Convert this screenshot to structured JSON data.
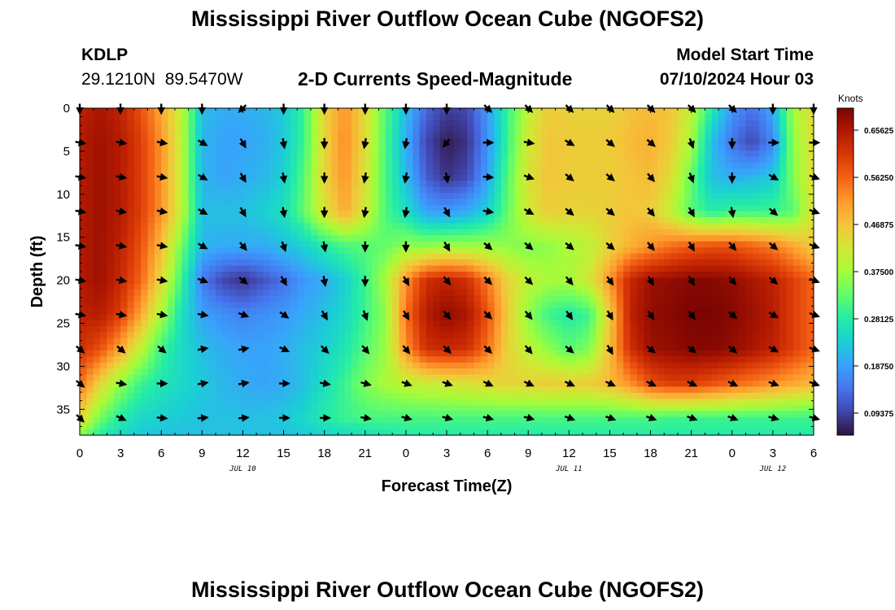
{
  "page_title": "Mississippi River Outflow Ocean Cube (NGOFS2)",
  "station": {
    "id": "KDLP",
    "coords": "29.1210N  89.5470W"
  },
  "model_start": {
    "label": "Model Start Time",
    "value": "07/10/2024 Hour 03"
  },
  "bottom_title": "Mississippi River Outflow Ocean Cube (NGOFS2)",
  "chart_data": {
    "type": "heatmap",
    "title": "2-D Currents Speed-Magnitude",
    "xlabel": "Forecast Time(Z)",
    "ylabel": "Depth (ft)",
    "x_range": [
      0,
      54
    ],
    "y_range": [
      0,
      38
    ],
    "y_axis_inverted": true,
    "x_tick_values": [
      0,
      3,
      6,
      9,
      12,
      15,
      18,
      21,
      24,
      27,
      30,
      33,
      36,
      39,
      42,
      45,
      48,
      51,
      54
    ],
    "x_tick_labels": [
      "0",
      "3",
      "6",
      "9",
      "12",
      "15",
      "18",
      "21",
      "0",
      "3",
      "6",
      "9",
      "12",
      "15",
      "18",
      "21",
      "0",
      "3",
      "6"
    ],
    "y_tick_values": [
      0,
      5,
      10,
      15,
      20,
      25,
      30,
      35
    ],
    "y_tick_labels": [
      "0",
      "5",
      "10",
      "15",
      "20",
      "25",
      "30",
      "35"
    ],
    "day_labels": [
      {
        "x": 12,
        "text": "JUL 10"
      },
      {
        "x": 36,
        "text": "JUL 11"
      },
      {
        "x": 51,
        "text": "JUL 12"
      }
    ],
    "colorbar": {
      "unit": "Knots",
      "range": [
        0.05,
        0.7
      ],
      "tick_values": [
        0.09375,
        0.1875,
        0.28125,
        0.375,
        0.46875,
        0.5625,
        0.65625
      ],
      "tick_labels": [
        "0.09375",
        "0.18750",
        "0.28125",
        "0.37500",
        "0.46875",
        "0.56250",
        "0.65625"
      ],
      "colormap": [
        "#30123b",
        "#4145ab",
        "#4675ed",
        "#39a2fc",
        "#1bcfd4",
        "#24eca6",
        "#61fc6c",
        "#a4fc3b",
        "#d1e834",
        "#f3c63a",
        "#fe9b2d",
        "#f36315",
        "#d93806",
        "#b11901",
        "#7a0402"
      ]
    },
    "speed_field": {
      "x": [
        0,
        1.5,
        3,
        4.5,
        6,
        7.5,
        9,
        10.5,
        12,
        13.5,
        15,
        16.5,
        18,
        19.5,
        21,
        22.5,
        24,
        25.5,
        27,
        28.5,
        30,
        31.5,
        33,
        34.5,
        36,
        37.5,
        39,
        40.5,
        42,
        43.5,
        45,
        46.5,
        48,
        49.5,
        51,
        52.5,
        54
      ],
      "depth": [
        0,
        4,
        8,
        12,
        16,
        20,
        24,
        28,
        32,
        36,
        38
      ],
      "values": [
        [
          0.64,
          0.66,
          0.64,
          0.58,
          0.5,
          0.4,
          0.22,
          0.2,
          0.2,
          0.21,
          0.23,
          0.3,
          0.45,
          0.52,
          0.44,
          0.32,
          0.22,
          0.13,
          0.09,
          0.1,
          0.18,
          0.3,
          0.4,
          0.46,
          0.45,
          0.45,
          0.45,
          0.47,
          0.48,
          0.47,
          0.4,
          0.28,
          0.18,
          0.14,
          0.2,
          0.38,
          0.44
        ],
        [
          0.65,
          0.67,
          0.65,
          0.6,
          0.52,
          0.4,
          0.21,
          0.19,
          0.19,
          0.2,
          0.23,
          0.3,
          0.45,
          0.53,
          0.44,
          0.31,
          0.2,
          0.1,
          0.06,
          0.08,
          0.17,
          0.3,
          0.42,
          0.47,
          0.46,
          0.46,
          0.46,
          0.48,
          0.49,
          0.46,
          0.38,
          0.22,
          0.14,
          0.1,
          0.16,
          0.36,
          0.44
        ],
        [
          0.65,
          0.67,
          0.65,
          0.6,
          0.52,
          0.4,
          0.21,
          0.19,
          0.2,
          0.21,
          0.24,
          0.32,
          0.45,
          0.52,
          0.43,
          0.31,
          0.22,
          0.12,
          0.08,
          0.1,
          0.19,
          0.32,
          0.43,
          0.47,
          0.46,
          0.46,
          0.46,
          0.47,
          0.48,
          0.44,
          0.33,
          0.22,
          0.2,
          0.21,
          0.23,
          0.35,
          0.44
        ],
        [
          0.65,
          0.67,
          0.65,
          0.6,
          0.52,
          0.4,
          0.22,
          0.22,
          0.22,
          0.24,
          0.26,
          0.33,
          0.43,
          0.5,
          0.42,
          0.31,
          0.26,
          0.19,
          0.18,
          0.2,
          0.24,
          0.33,
          0.42,
          0.46,
          0.45,
          0.45,
          0.46,
          0.47,
          0.46,
          0.4,
          0.32,
          0.28,
          0.3,
          0.3,
          0.3,
          0.32,
          0.44
        ],
        [
          0.65,
          0.67,
          0.64,
          0.58,
          0.48,
          0.34,
          0.21,
          0.2,
          0.2,
          0.2,
          0.22,
          0.24,
          0.28,
          0.31,
          0.32,
          0.33,
          0.36,
          0.36,
          0.37,
          0.37,
          0.37,
          0.36,
          0.35,
          0.36,
          0.38,
          0.4,
          0.45,
          0.49,
          0.52,
          0.55,
          0.57,
          0.58,
          0.58,
          0.56,
          0.54,
          0.5,
          0.46
        ],
        [
          0.65,
          0.67,
          0.63,
          0.56,
          0.44,
          0.3,
          0.15,
          0.1,
          0.08,
          0.11,
          0.14,
          0.18,
          0.2,
          0.24,
          0.3,
          0.38,
          0.52,
          0.62,
          0.64,
          0.62,
          0.54,
          0.45,
          0.4,
          0.38,
          0.38,
          0.42,
          0.52,
          0.63,
          0.67,
          0.68,
          0.69,
          0.69,
          0.68,
          0.66,
          0.64,
          0.6,
          0.56
        ],
        [
          0.64,
          0.65,
          0.6,
          0.5,
          0.38,
          0.26,
          0.19,
          0.17,
          0.16,
          0.17,
          0.18,
          0.2,
          0.22,
          0.25,
          0.3,
          0.36,
          0.55,
          0.65,
          0.68,
          0.66,
          0.58,
          0.46,
          0.36,
          0.3,
          0.28,
          0.3,
          0.46,
          0.64,
          0.68,
          0.69,
          0.7,
          0.7,
          0.69,
          0.67,
          0.65,
          0.6,
          0.56
        ],
        [
          0.62,
          0.58,
          0.5,
          0.4,
          0.3,
          0.25,
          0.22,
          0.2,
          0.19,
          0.19,
          0.2,
          0.22,
          0.24,
          0.27,
          0.32,
          0.37,
          0.52,
          0.62,
          0.63,
          0.62,
          0.55,
          0.45,
          0.4,
          0.36,
          0.32,
          0.35,
          0.48,
          0.62,
          0.67,
          0.68,
          0.69,
          0.69,
          0.68,
          0.66,
          0.64,
          0.6,
          0.56
        ],
        [
          0.55,
          0.45,
          0.36,
          0.3,
          0.27,
          0.25,
          0.23,
          0.21,
          0.2,
          0.19,
          0.2,
          0.22,
          0.26,
          0.3,
          0.35,
          0.38,
          0.4,
          0.41,
          0.42,
          0.43,
          0.44,
          0.45,
          0.45,
          0.46,
          0.46,
          0.46,
          0.48,
          0.52,
          0.58,
          0.6,
          0.6,
          0.58,
          0.56,
          0.54,
          0.52,
          0.5,
          0.48
        ],
        [
          0.45,
          0.34,
          0.28,
          0.25,
          0.24,
          0.23,
          0.22,
          0.22,
          0.22,
          0.22,
          0.23,
          0.25,
          0.28,
          0.3,
          0.31,
          0.31,
          0.31,
          0.31,
          0.31,
          0.31,
          0.31,
          0.31,
          0.31,
          0.31,
          0.31,
          0.31,
          0.31,
          0.31,
          0.31,
          0.3,
          0.3,
          0.3,
          0.3,
          0.3,
          0.3,
          0.3,
          0.3
        ],
        [
          0.35,
          0.28,
          0.25,
          0.23,
          0.22,
          0.22,
          0.22,
          0.22,
          0.22,
          0.22,
          0.22,
          0.23,
          0.24,
          0.25,
          0.26,
          0.27,
          0.28,
          0.28,
          0.28,
          0.28,
          0.28,
          0.28,
          0.28,
          0.28,
          0.28,
          0.28,
          0.28,
          0.28,
          0.28,
          0.28,
          0.28,
          0.28,
          0.28,
          0.28,
          0.28,
          0.28,
          0.28
        ]
      ]
    },
    "vectors": {
      "x": [
        0,
        3,
        6,
        9,
        12,
        15,
        18,
        21,
        24,
        27,
        30,
        33,
        36,
        39,
        42,
        45,
        48,
        51,
        54
      ],
      "depth": [
        0,
        4,
        8,
        12,
        16,
        20,
        24,
        28,
        32,
        36
      ],
      "angle_deg": [
        [
          90,
          90,
          90,
          90,
          135,
          90,
          90,
          90,
          90,
          90,
          45,
          45,
          45,
          45,
          45,
          45,
          45,
          90,
          90
        ],
        [
          10,
          10,
          10,
          30,
          60,
          80,
          90,
          100,
          100,
          130,
          0,
          10,
          30,
          40,
          40,
          70,
          90,
          0,
          0
        ],
        [
          10,
          10,
          10,
          30,
          60,
          80,
          90,
          100,
          100,
          80,
          5,
          20,
          40,
          40,
          50,
          70,
          90,
          30,
          20
        ],
        [
          10,
          10,
          10,
          30,
          60,
          80,
          90,
          100,
          100,
          60,
          10,
          30,
          40,
          40,
          50,
          60,
          80,
          40,
          20
        ],
        [
          10,
          10,
          10,
          30,
          50,
          70,
          80,
          90,
          90,
          60,
          40,
          40,
          40,
          40,
          50,
          60,
          50,
          40,
          20
        ],
        [
          10,
          10,
          10,
          20,
          40,
          60,
          80,
          90,
          60,
          50,
          45,
          45,
          50,
          55,
          60,
          60,
          50,
          40,
          20
        ],
        [
          10,
          10,
          10,
          10,
          20,
          35,
          60,
          70,
          60,
          50,
          45,
          50,
          55,
          60,
          55,
          50,
          40,
          30,
          20
        ],
        [
          40,
          40,
          40,
          -10,
          -10,
          25,
          45,
          50,
          50,
          45,
          45,
          50,
          40,
          60,
          40,
          40,
          40,
          30,
          20
        ],
        [
          40,
          10,
          0,
          -10,
          -10,
          0,
          10,
          15,
          20,
          20,
          25,
          25,
          25,
          25,
          25,
          25,
          25,
          20,
          20
        ],
        [
          45,
          25,
          5,
          -5,
          -5,
          0,
          0,
          10,
          15,
          15,
          15,
          15,
          20,
          20,
          20,
          20,
          20,
          15,
          15
        ]
      ]
    },
    "grid": false
  }
}
